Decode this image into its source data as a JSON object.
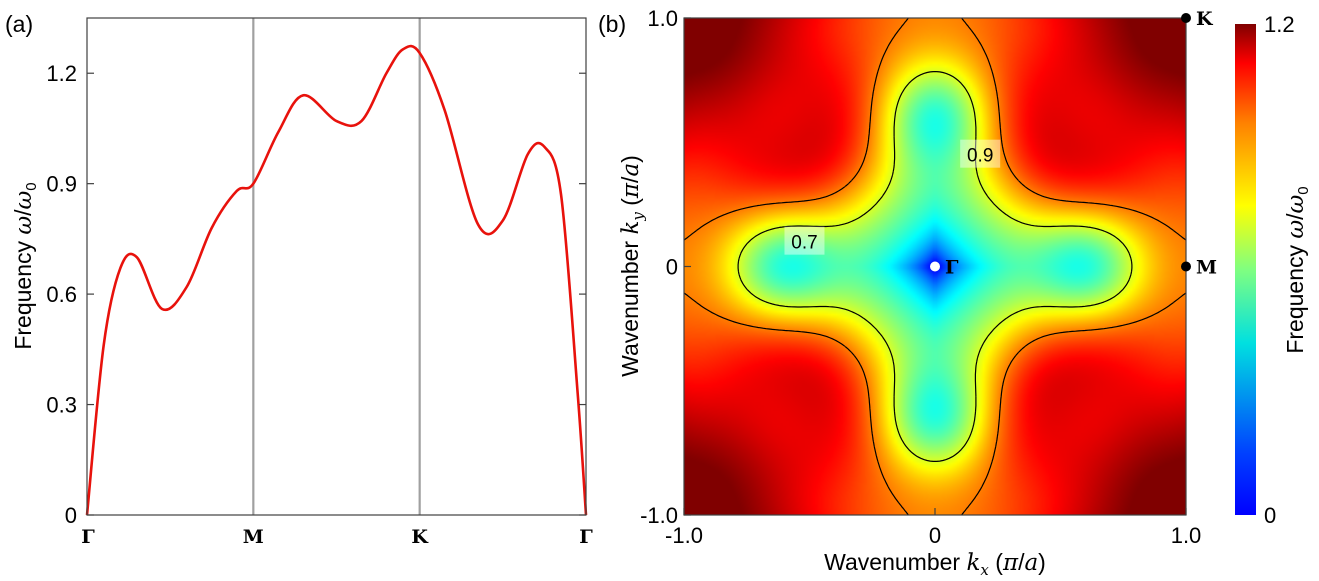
{
  "figure": {
    "panel_a_label": "(a)",
    "panel_b_label": "(b)"
  },
  "chart_data": [
    {
      "type": "line",
      "panel": "(a)",
      "xlabel": "",
      "ylabel": "Frequency ω/ω₀",
      "ylim": [
        0,
        1.35
      ],
      "yticks": [
        "0",
        "0.3",
        "0.6",
        "0.9",
        "1.2"
      ],
      "ytick_values": [
        0,
        0.3,
        0.6,
        0.9,
        1.2
      ],
      "xtick_labels": [
        "Γ",
        "M",
        "K",
        "Γ"
      ],
      "xtick_positions": [
        0,
        1,
        2,
        3
      ],
      "vertical_lines_at": [
        1,
        2
      ],
      "vertical_line_color": "#a0a0a0",
      "line_color": "#e8120c",
      "grid": false,
      "series": [
        {
          "x": [
            0,
            0.1,
            0.2,
            0.3,
            0.45,
            0.6,
            0.75,
            0.9,
            1.0,
            1.15,
            1.3,
            1.5,
            1.65,
            1.8,
            1.9,
            2.0,
            2.15,
            2.35,
            2.5,
            2.65,
            2.75,
            2.85,
            2.95,
            3.0
          ],
          "y": [
            0,
            0.46,
            0.67,
            0.7,
            0.56,
            0.62,
            0.78,
            0.88,
            0.9,
            1.04,
            1.14,
            1.07,
            1.07,
            1.2,
            1.265,
            1.255,
            1.1,
            0.79,
            0.8,
            0.98,
            1.0,
            0.87,
            0.33,
            0
          ]
        }
      ]
    },
    {
      "type": "heatmap",
      "panel": "(b)",
      "xlabel": "Wavenumber k_x (π/a)",
      "ylabel": "Wavenumber k_y (π/a)",
      "xlim": [
        -1.0,
        1.0
      ],
      "ylim": [
        -1.0,
        1.0
      ],
      "xticks": [
        "-1.0",
        "0",
        "1.0"
      ],
      "xtick_values": [
        -1.0,
        0,
        1.0
      ],
      "yticks": [
        "-1.0",
        "0",
        "1.0"
      ],
      "ytick_values": [
        -1.0,
        0,
        1.0
      ],
      "colorbar": {
        "label": "Frequency ω/ω₀",
        "range": [
          0,
          1.2
        ],
        "ticks": [
          "0",
          "1.2"
        ],
        "tick_values": [
          0,
          1.2
        ],
        "colormap": "jet"
      },
      "contours": [
        {
          "level": 0.7,
          "label": "0.7",
          "style": "solid"
        },
        {
          "level": 0.9,
          "label": "0.9",
          "style": "dashed"
        }
      ],
      "points": [
        {
          "label": "Γ",
          "kx": 0,
          "ky": 0,
          "marker_color": "#ffffff"
        },
        {
          "label": "M",
          "kx": 1.0,
          "ky": 0,
          "marker_color": "#000000"
        },
        {
          "label": "K",
          "kx": 1.0,
          "ky": 1.0,
          "marker_color": "#000000"
        }
      ]
    }
  ]
}
